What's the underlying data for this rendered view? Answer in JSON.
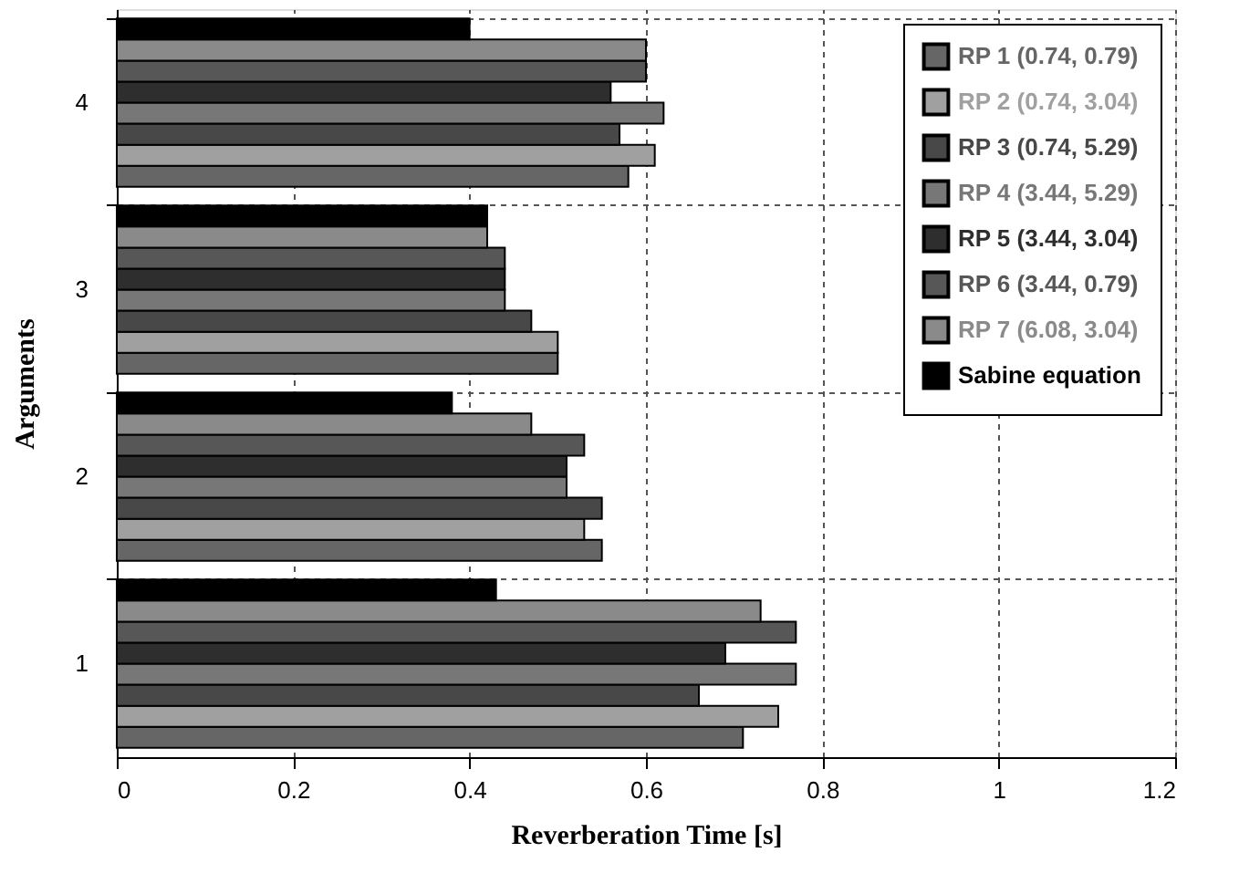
{
  "chart_data": {
    "type": "bar",
    "orientation": "horizontal",
    "xlabel": "Reverberation Time [s]",
    "ylabel": "Arguments",
    "categories": [
      "4",
      "3",
      "2",
      "1"
    ],
    "series": [
      {
        "name": "RP 1 (0.74, 0.79)",
        "color": "#666666",
        "values": [
          0.58,
          0.5,
          0.55,
          0.71
        ]
      },
      {
        "name": "RP 2 (0.74, 3.04)",
        "color": "#a0a0a0",
        "values": [
          0.61,
          0.5,
          0.53,
          0.75
        ]
      },
      {
        "name": "RP 3 (0.74, 5.29)",
        "color": "#484848",
        "values": [
          0.57,
          0.47,
          0.55,
          0.66
        ]
      },
      {
        "name": "RP 4 (3.44, 5.29)",
        "color": "#777777",
        "values": [
          0.62,
          0.44,
          0.51,
          0.77
        ]
      },
      {
        "name": "RP 5 (3.44, 3.04)",
        "color": "#2e2e2e",
        "values": [
          0.56,
          0.44,
          0.51,
          0.69
        ]
      },
      {
        "name": "RP 6 (3.44, 0.79)",
        "color": "#575757",
        "values": [
          0.6,
          0.44,
          0.53,
          0.77
        ]
      },
      {
        "name": "RP 7 (6.08, 3.04)",
        "color": "#8a8a8a",
        "values": [
          0.6,
          0.42,
          0.47,
          0.73
        ]
      },
      {
        "name": "Sabine equation",
        "color": "#000000",
        "values": [
          0.4,
          0.42,
          0.38,
          0.43
        ]
      }
    ],
    "xlim": [
      0,
      1.2
    ],
    "xticks": [
      0,
      0.2,
      0.4,
      0.6,
      0.8,
      1,
      1.2
    ],
    "grid": true,
    "legend": "top right"
  }
}
